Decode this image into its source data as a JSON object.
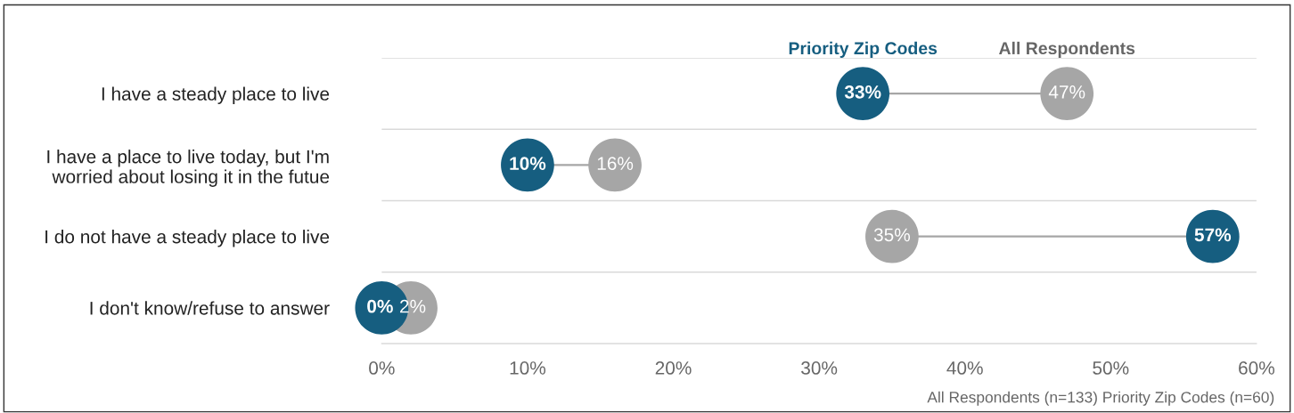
{
  "chart_data": {
    "type": "scatter",
    "categories": [
      "I have a steady place to live",
      "I have a place to live today, but I'm\nworried about losing it in the futue",
      "I do not have a steady place to live",
      "I don't know/refuse to answer"
    ],
    "series": [
      {
        "name": "All Respondents",
        "color": "#a6a6a6",
        "values": [
          47,
          16,
          35,
          2
        ],
        "value_labels": [
          "47%",
          "16%",
          "35%",
          "2%"
        ]
      },
      {
        "name": "Priority Zip Codes",
        "color": "#165e80",
        "values": [
          33,
          10,
          57,
          0
        ],
        "value_labels": [
          "33%",
          "10%",
          "57%",
          "0%"
        ]
      }
    ],
    "orientation": "horizontal",
    "xlim": [
      0,
      60
    ],
    "xticks": [
      {
        "value": 0,
        "label": "0%"
      },
      {
        "value": 10,
        "label": "10%"
      },
      {
        "value": 20,
        "label": "20%"
      },
      {
        "value": 30,
        "label": "30%"
      },
      {
        "value": 40,
        "label": "40%"
      },
      {
        "value": 50,
        "label": "50%"
      },
      {
        "value": 60,
        "label": "60%"
      }
    ],
    "marker": "circle",
    "grid": "y",
    "annotations": [
      "All Respondents (n=133) Priority Zip Codes (n=60)"
    ]
  }
}
